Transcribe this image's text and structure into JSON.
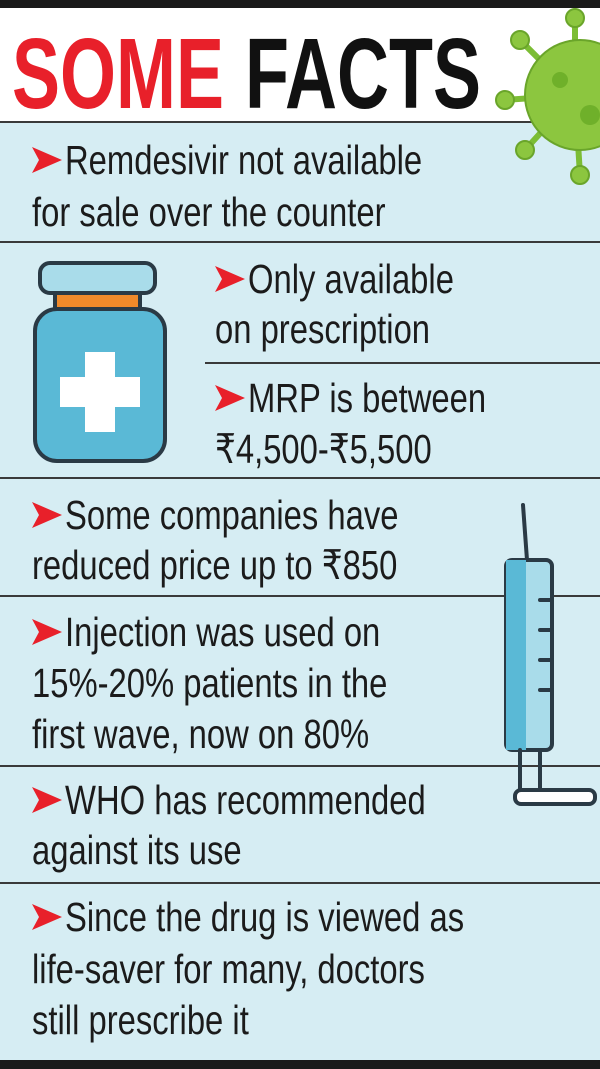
{
  "header": {
    "title_part1": "SOME",
    "title_part2": "FACTS"
  },
  "facts": [
    {
      "lines": [
        "Remdesivir not available",
        "for sale over the counter"
      ]
    },
    {
      "lines": [
        "Only available",
        "on prescription"
      ]
    },
    {
      "lines": [
        "MRP is between",
        "₹4,500-₹5,500"
      ]
    },
    {
      "lines": [
        "Some companies have",
        "reduced price up to ₹850"
      ]
    },
    {
      "lines": [
        "Injection was used on",
        "15%-20% patients in the",
        "first wave, now on 80%"
      ]
    },
    {
      "lines": [
        "WHO has recommended",
        "against its use"
      ]
    },
    {
      "lines": [
        "Since the drug is viewed as",
        "life-saver for many, doctors",
        "still prescribe it"
      ]
    }
  ]
}
